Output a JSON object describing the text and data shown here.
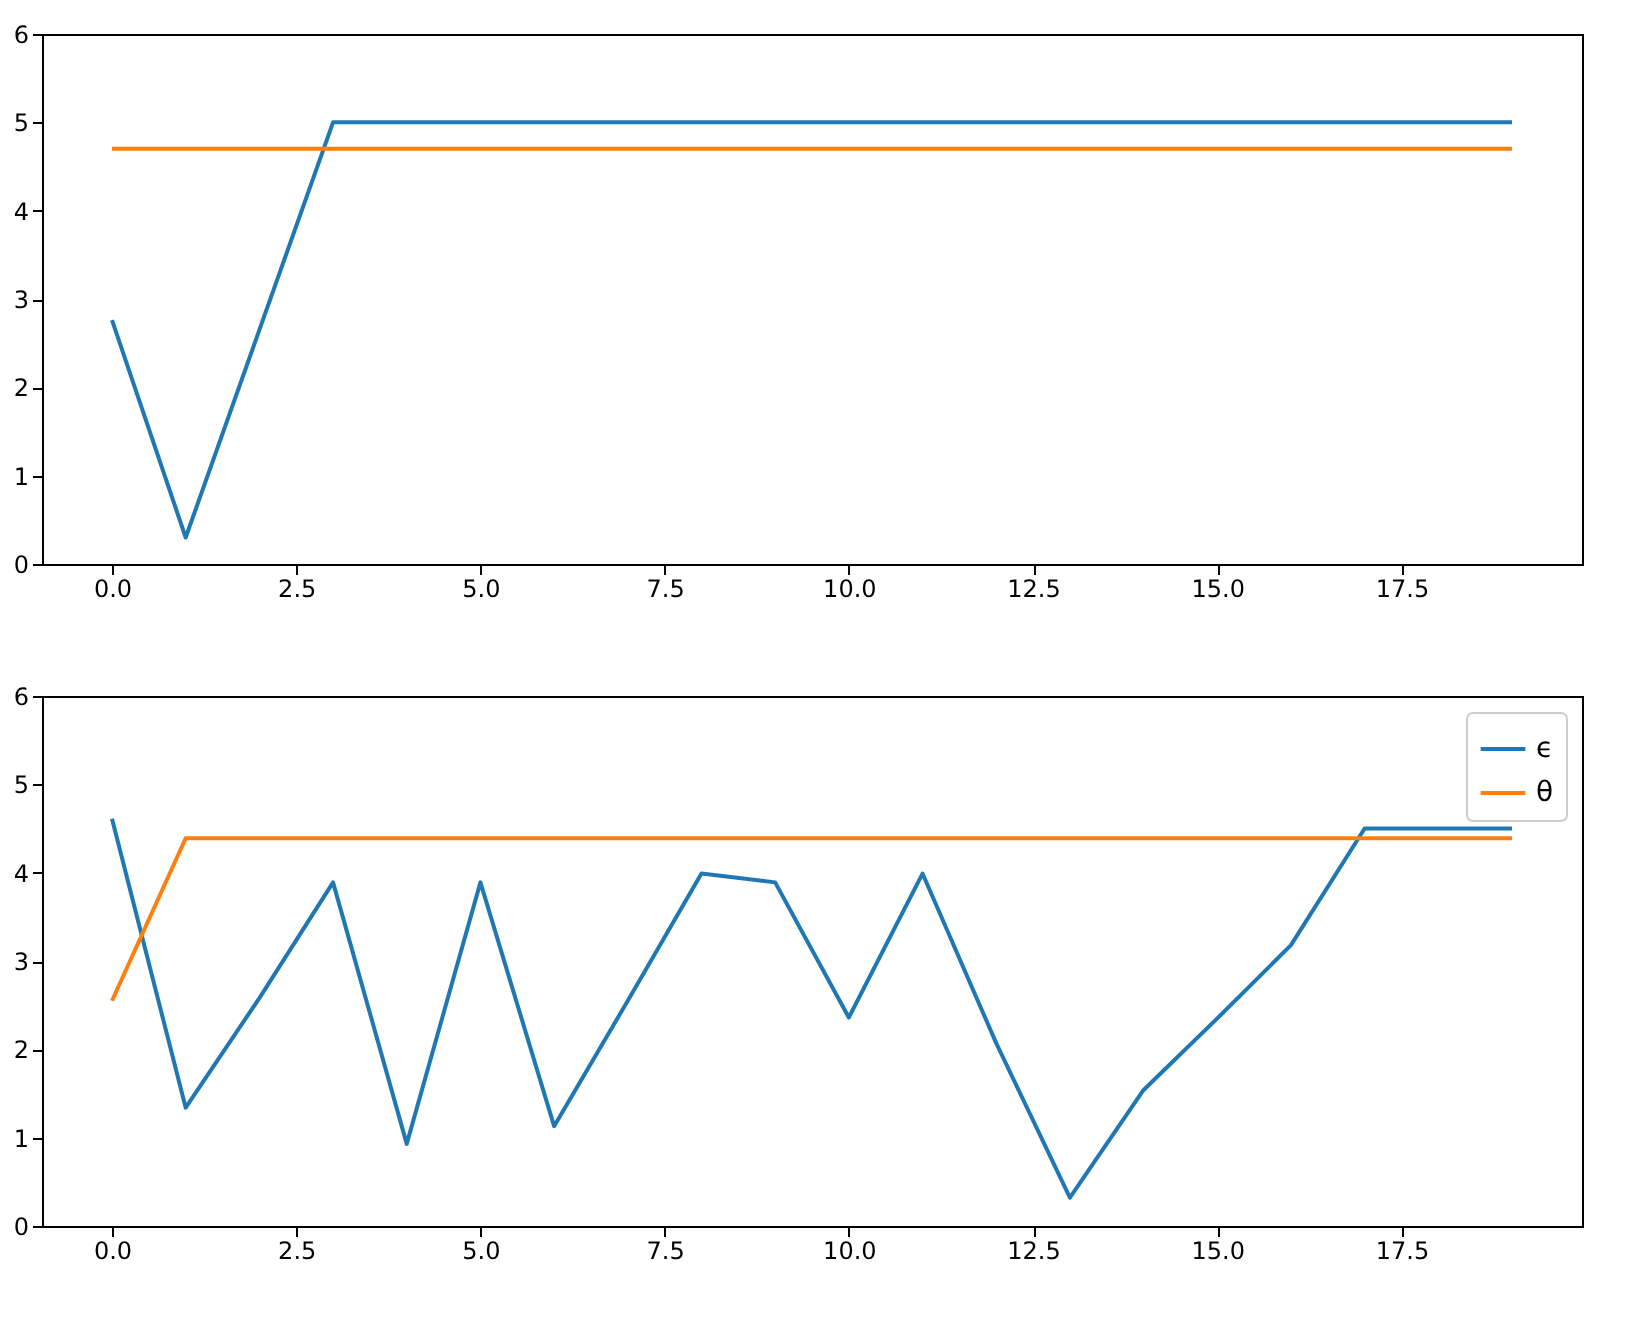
{
  "chart_data": [
    {
      "type": "line",
      "x": [
        0,
        1,
        2,
        3,
        4,
        5,
        6,
        7,
        8,
        9,
        10,
        11,
        12,
        13,
        14,
        15,
        16,
        17,
        18,
        19
      ],
      "series": [
        {
          "color": "#1f77b4",
          "values": [
            2.76,
            0.3,
            2.65,
            5.0,
            5.0,
            5.0,
            5.0,
            5.0,
            5.0,
            5.0,
            5.0,
            5.0,
            5.0,
            5.0,
            5.0,
            5.0,
            5.0,
            5.0,
            5.0,
            5.0
          ]
        },
        {
          "color": "#ff7f0e",
          "values": [
            4.7,
            4.7,
            4.7,
            4.7,
            4.7,
            4.7,
            4.7,
            4.7,
            4.7,
            4.7,
            4.7,
            4.7,
            4.7,
            4.7,
            4.7,
            4.7,
            4.7,
            4.7,
            4.7,
            4.7
          ]
        }
      ],
      "xlim": [
        -0.95,
        19.95
      ],
      "ylim": [
        0,
        6
      ],
      "xticks": [
        {
          "value": 0,
          "label": "0.0"
        },
        {
          "value": 2.5,
          "label": "2.5"
        },
        {
          "value": 5,
          "label": "5.0"
        },
        {
          "value": 7.5,
          "label": "7.5"
        },
        {
          "value": 10,
          "label": "10.0"
        },
        {
          "value": 12.5,
          "label": "12.5"
        },
        {
          "value": 15,
          "label": "15.0"
        },
        {
          "value": 17.5,
          "label": "17.5"
        }
      ],
      "yticks": [
        0,
        1,
        2,
        3,
        4,
        5,
        6
      ],
      "grid": false,
      "legend": false
    },
    {
      "type": "line",
      "x": [
        0,
        1,
        2,
        3,
        4,
        5,
        6,
        7,
        8,
        9,
        10,
        11,
        12,
        13,
        14,
        15,
        16,
        17,
        18,
        19
      ],
      "series": [
        {
          "name": "ϵ",
          "color": "#1f77b4",
          "values": [
            4.61,
            1.34,
            2.58,
            3.89,
            0.93,
            3.89,
            1.13,
            2.55,
            3.99,
            3.89,
            2.36,
            3.99,
            2.07,
            0.32,
            1.54,
            2.35,
            3.18,
            4.5,
            4.5,
            4.5
          ]
        },
        {
          "name": "θ",
          "color": "#ff7f0e",
          "values": [
            2.55,
            4.39,
            4.39,
            4.39,
            4.39,
            4.39,
            4.39,
            4.39,
            4.39,
            4.39,
            4.39,
            4.39,
            4.39,
            4.39,
            4.39,
            4.39,
            4.39,
            4.39,
            4.39,
            4.39
          ]
        }
      ],
      "xlim": [
        -0.95,
        19.95
      ],
      "ylim": [
        0,
        6
      ],
      "xticks": [
        {
          "value": 0,
          "label": "0.0"
        },
        {
          "value": 2.5,
          "label": "2.5"
        },
        {
          "value": 5,
          "label": "5.0"
        },
        {
          "value": 7.5,
          "label": "7.5"
        },
        {
          "value": 10,
          "label": "10.0"
        },
        {
          "value": 12.5,
          "label": "12.5"
        },
        {
          "value": 15,
          "label": "15.0"
        },
        {
          "value": 17.5,
          "label": "17.5"
        }
      ],
      "yticks": [
        0,
        1,
        2,
        3,
        4,
        5,
        6
      ],
      "grid": false,
      "legend": "top right"
    }
  ]
}
